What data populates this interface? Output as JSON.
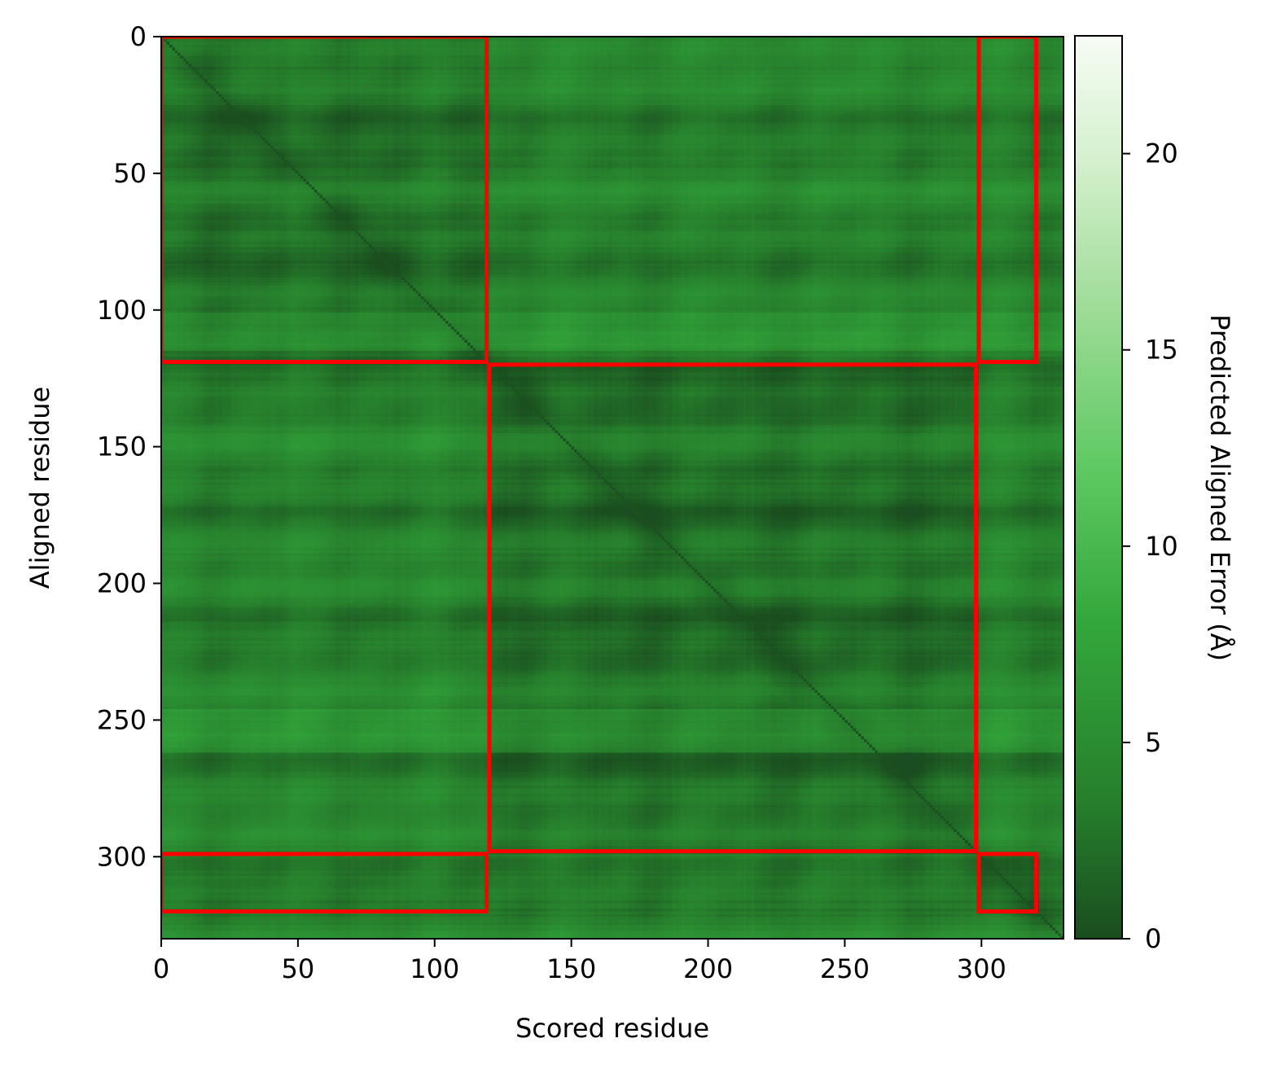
{
  "chart_data": {
    "type": "heatmap",
    "title": "",
    "xlabel": "Scored residue",
    "ylabel": "Aligned residue",
    "n_residues": 330,
    "xlim": [
      0,
      330
    ],
    "ylim": [
      330,
      0
    ],
    "x_ticks": [
      0,
      50,
      100,
      150,
      200,
      250,
      300
    ],
    "y_ticks": [
      0,
      50,
      100,
      150,
      200,
      250,
      300
    ],
    "colorbar": {
      "label": "Predicted Aligned Error (Å)",
      "range": [
        0,
        23
      ],
      "ticks": [
        0,
        5,
        10,
        15,
        20
      ],
      "colormap": "Greens_r",
      "colors": [
        "#1a4d1f",
        "#267f2c",
        "#33a73b",
        "#5ec962",
        "#9fdc98",
        "#d4f0cd",
        "#f7fcf5"
      ]
    },
    "domains": [
      {
        "name": "",
        "start": 0,
        "end": 119
      },
      {
        "name": "",
        "start": 120,
        "end": 298
      },
      {
        "name": "",
        "start": 299,
        "end": 320
      }
    ],
    "domain_boxes_color": "#ff0000",
    "domain_boxes": [
      {
        "x": [
          0,
          119
        ],
        "y": [
          0,
          119
        ]
      },
      {
        "x": [
          120,
          298
        ],
        "y": [
          120,
          298
        ]
      },
      {
        "x": [
          299,
          320
        ],
        "y": [
          0,
          119
        ]
      },
      {
        "x": [
          0,
          119
        ],
        "y": [
          299,
          320
        ]
      },
      {
        "x": [
          299,
          320
        ],
        "y": [
          299,
          320
        ]
      }
    ],
    "pae_summary": {
      "diagonal": 0.3,
      "within_domain_1": 2.0,
      "within_domain_2": 1.8,
      "between_domains": 3.2,
      "max_observed": 7.5
    }
  }
}
